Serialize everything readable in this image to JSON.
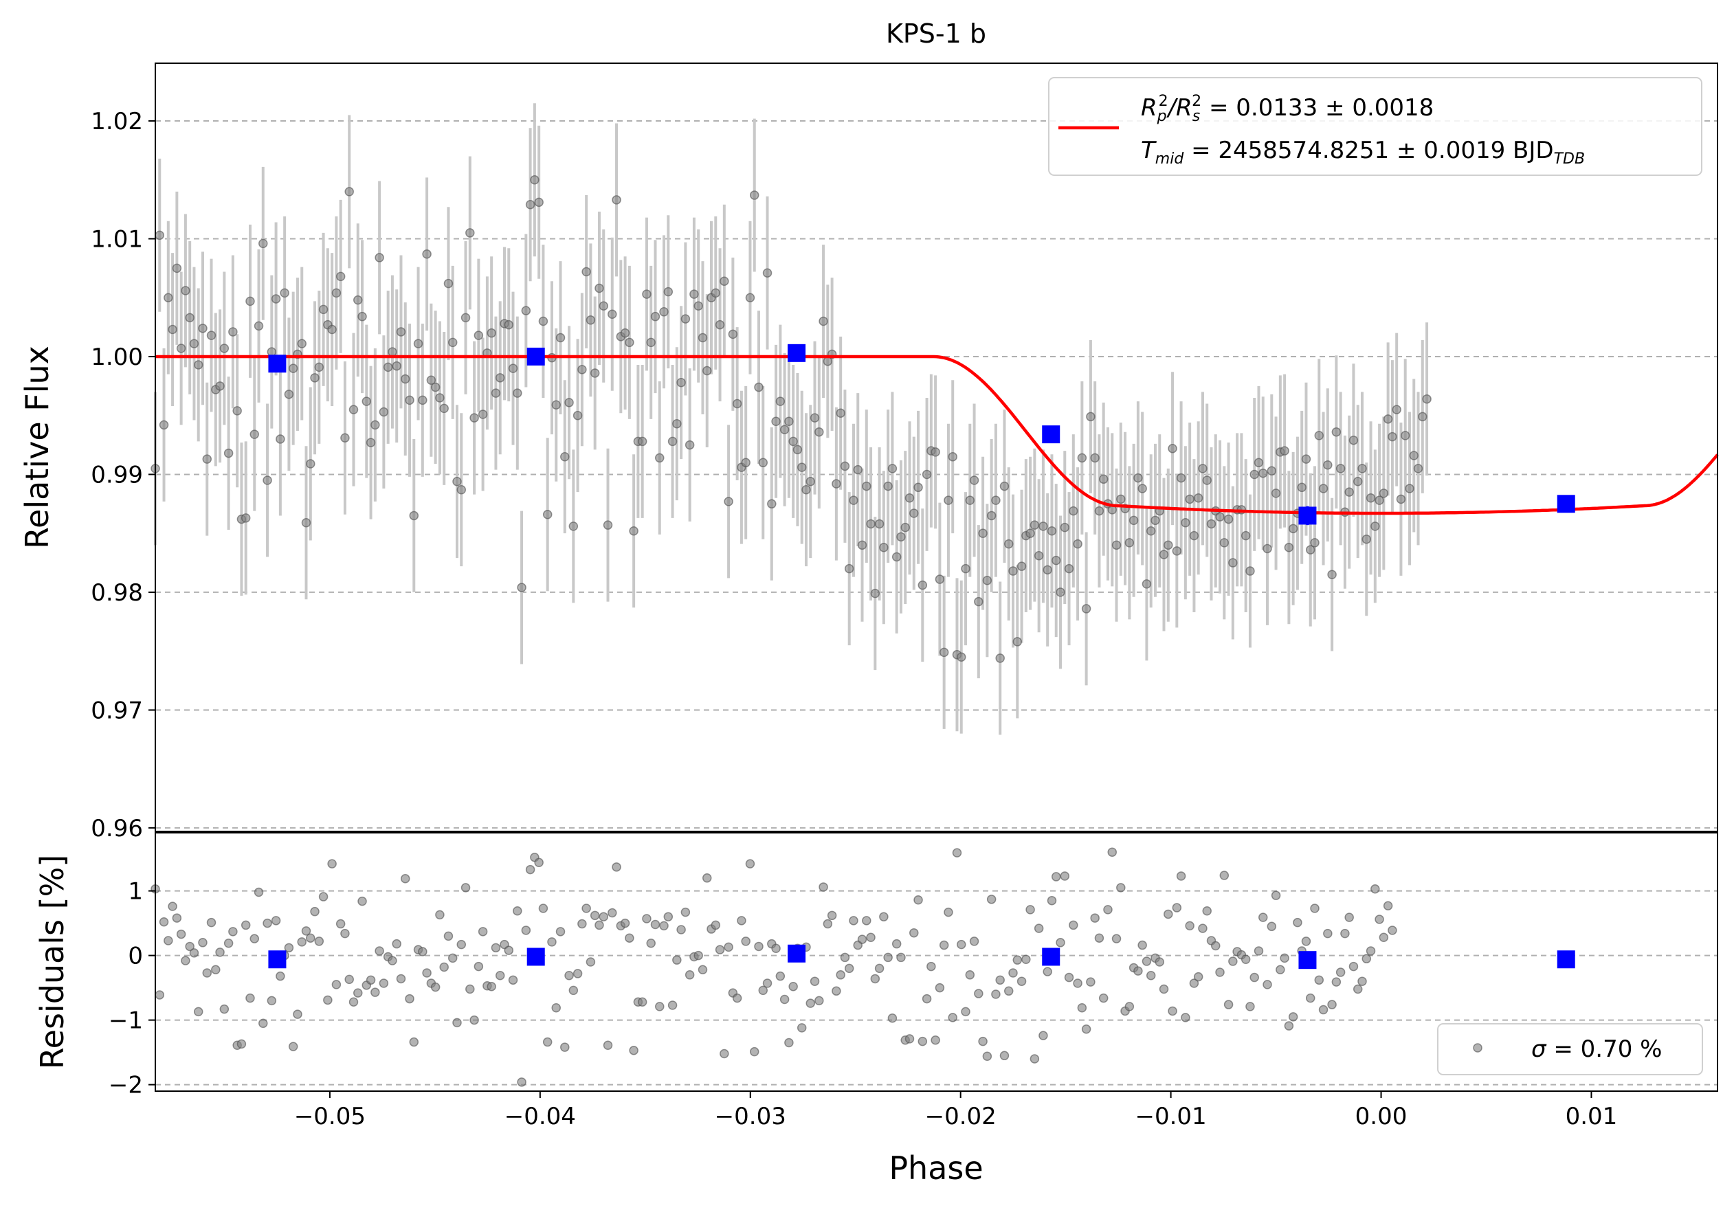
{
  "chart_data": [
    {
      "panel": "transit",
      "type": "scatter",
      "title": "KPS-1 b",
      "ylabel": "Relative Flux",
      "xlabel": "",
      "xlim": [
        -0.0583,
        0.016
      ],
      "ylim": [
        0.9597,
        1.0249
      ],
      "yticks": [
        0.96,
        0.97,
        0.98,
        0.99,
        1.0,
        1.01,
        1.02
      ],
      "ytick_labels": [
        "0.96",
        "0.97",
        "0.98",
        "0.99",
        "1.00",
        "1.01",
        "1.02"
      ],
      "grid": "y-dashed",
      "legend": {
        "position": "top-right",
        "entries": [
          {
            "line1_pre": "R",
            "line1_sub1": "p",
            "line1_sup1": "2",
            "line1_mid": "/R",
            "line1_sub2": "s",
            "line1_sup2": "2",
            "line1_post": " = 0.0133 ± 0.0018",
            "line2_pre": "T",
            "line2_sub": "mid",
            "line2_post": " = 2458574.8251 ± 0.0019 BJD",
            "line2_sub2": "TDB"
          }
        ]
      },
      "colors": {
        "data": "#808080",
        "errorbar": "#c8c8c8",
        "binned": "#0000ff",
        "model": "#ff0000",
        "grid": "#b0b0b0"
      },
      "model": {
        "name": "transit model",
        "baseline": 1.0,
        "depth": 0.0133,
        "t_center": 0.0,
        "t_ingress_start": -0.0213,
        "t_ingress_end": -0.0125,
        "t_egress_start": 0.0125,
        "t_egress_end": 0.0213
      },
      "binned": {
        "x": [
          -0.0525,
          -0.0402,
          -0.0278,
          -0.0157,
          -0.0035,
          0.0088
        ],
        "y": [
          0.9994,
          1.0,
          1.0003,
          0.9934,
          0.9865,
          0.9875
        ],
        "yerr": [
          0.0006,
          0.0006,
          0.0006,
          0.0006,
          0.0008,
          0.0006
        ]
      },
      "points": {
        "x_start": -0.0583,
        "x_step": 0.000205,
        "yerr": 0.0065,
        "y": [
          0.9905,
          1.0103,
          0.9942,
          1.005,
          1.0023,
          1.0075,
          1.0007,
          1.0056,
          1.0033,
          1.0011,
          0.9993,
          1.0024,
          0.9913,
          1.0018,
          0.9972,
          0.9975,
          1.0007,
          0.9918,
          1.0021,
          0.9954,
          0.9862,
          0.9863,
          1.0047,
          0.9934,
          1.0026,
          1.0096,
          0.9895,
          1.0004,
          1.0049,
          0.993,
          1.0054,
          0.9968,
          0.999,
          1.0002,
          1.0011,
          0.9859,
          0.9909,
          0.9982,
          0.9991,
          1.004,
          1.0027,
          1.0023,
          1.0054,
          1.0068,
          0.9931,
          1.014,
          0.9955,
          1.0048,
          1.0034,
          0.9962,
          0.9927,
          0.9942,
          1.0084,
          0.9953,
          0.9991,
          1.0004,
          0.9992,
          1.0021,
          0.9981,
          0.9963,
          0.9865,
          1.0011,
          0.9963,
          1.0087,
          0.998,
          0.9974,
          0.9965,
          0.9956,
          1.0062,
          1.0012,
          0.9894,
          0.9887,
          1.0033,
          1.0105,
          0.9948,
          1.0018,
          0.9951,
          1.0003,
          1.002,
          0.9969,
          0.9982,
          1.0028,
          1.0027,
          0.999,
          0.9969,
          0.9804,
          1.0039,
          1.0129,
          1.015,
          1.0131,
          1.003,
          0.9866,
          0.9999,
          0.9959,
          1.0016,
          0.9915,
          0.9961,
          0.9856,
          0.995,
          0.9989,
          1.0072,
          1.0031,
          0.9986,
          1.0058,
          1.0043,
          0.9857,
          1.0036,
          1.0133,
          1.0017,
          1.002,
          1.0012,
          0.9852,
          0.9928,
          0.9928,
          1.0053,
          1.0012,
          1.0034,
          0.9914,
          1.0038,
          1.0055,
          0.9928,
          0.9943,
          0.9978,
          1.0032,
          0.9925,
          1.0053,
          1.0043,
          1.0016,
          0.9988,
          1.005,
          1.0054,
          1.0027,
          1.0064,
          0.9877,
          1.0019,
          0.996,
          0.9906,
          0.991,
          1.005,
          1.0137,
          0.9974,
          0.991,
          1.0071,
          0.9875,
          0.9945,
          0.9962,
          0.9938,
          0.9945,
          0.9928,
          0.9921,
          0.9906,
          0.9887,
          0.9894,
          0.9948,
          0.9936,
          1.003,
          0.9996,
          1.0002,
          0.9892,
          0.9952,
          0.9907,
          0.982,
          0.9878,
          0.9904,
          0.984,
          0.989,
          0.9858,
          0.9799,
          0.9858,
          0.9838,
          0.989,
          0.9905,
          0.983,
          0.9847,
          0.9855,
          0.988,
          0.9867,
          0.9889,
          0.9806,
          0.99,
          0.992,
          0.9919,
          0.9811,
          0.9749,
          0.9878,
          0.9915,
          0.9747,
          0.9745,
          0.982,
          0.9878,
          0.9895,
          0.9792,
          0.985,
          0.981,
          0.9865,
          0.9878,
          0.9744,
          0.989,
          0.9841,
          0.9818,
          0.9758,
          0.9822,
          0.9848,
          0.985,
          0.9857,
          0.9831,
          0.9856,
          0.9819,
          0.9852,
          0.9827,
          0.98,
          0.9855,
          0.982,
          0.9869,
          0.9841,
          0.9914,
          0.9786,
          0.9949,
          0.9914,
          0.9869,
          0.9896,
          0.9875,
          0.987,
          0.984,
          0.9879,
          0.9871,
          0.9842,
          0.9861,
          0.9897,
          0.9888,
          0.9807,
          0.9852,
          0.9861,
          0.9869,
          0.9832,
          0.984,
          0.9922,
          0.9835,
          0.9897,
          0.9859,
          0.9879,
          0.9848,
          0.988,
          0.9905,
          0.9895,
          0.9858,
          0.9869,
          0.9864,
          0.9842,
          0.9862,
          0.9825,
          0.987,
          0.987,
          0.9848,
          0.9818,
          0.99,
          0.991,
          0.9901,
          0.9837,
          0.9903,
          0.9884,
          0.9919,
          0.992,
          0.9838,
          0.9854,
          0.9867,
          0.9889,
          0.9913,
          0.9836,
          0.9842,
          0.9933,
          0.9888,
          0.9908,
          0.9815,
          0.9936,
          0.9905,
          0.9868,
          0.9885,
          0.9929,
          0.9894,
          0.9905,
          0.9845,
          0.988,
          0.9856,
          0.9878,
          0.9884,
          0.9947,
          0.9932,
          0.9955,
          0.9879,
          0.9933,
          0.9888,
          0.9916,
          0.9905,
          0.9949,
          0.9964
        ]
      }
    },
    {
      "panel": "residuals",
      "type": "scatter",
      "title": "",
      "xlabel": "Phase",
      "ylabel": "Residuals [%]",
      "xlim": [
        -0.0583,
        0.016
      ],
      "ylim": [
        -2.1,
        1.9
      ],
      "yticks": [
        -2,
        -1,
        0,
        1
      ],
      "ytick_labels": [
        "−2",
        "−1",
        "0",
        "1"
      ],
      "xticks": [
        -0.05,
        -0.04,
        -0.03,
        -0.02,
        -0.01,
        0.0,
        0.01
      ],
      "xtick_labels": [
        "−0.05",
        "−0.04",
        "−0.03",
        "−0.02",
        "−0.01",
        "0.00",
        "0.01"
      ],
      "grid": "y-dashed",
      "legend": {
        "position": "bottom-right",
        "entries": [
          {
            "pre": "σ",
            "post": " = 0.70 %"
          }
        ]
      },
      "binned": {
        "x": [
          -0.0525,
          -0.0402,
          -0.0278,
          -0.0157,
          -0.0035,
          0.0088
        ],
        "y": [
          -0.06,
          -0.02,
          0.03,
          -0.02,
          -0.07,
          -0.06
        ]
      },
      "points": {
        "x_start": -0.0583,
        "x_step": 0.000205,
        "y": [
          1.03,
          -0.61,
          0.52,
          0.23,
          0.76,
          0.58,
          0.33,
          -0.08,
          0.14,
          0.04,
          -0.87,
          0.2,
          -0.27,
          0.51,
          -0.22,
          0.05,
          -0.83,
          0.19,
          0.37,
          -1.39,
          -1.37,
          0.47,
          -0.66,
          0.26,
          0.98,
          -1.05,
          0.5,
          -0.7,
          0.54,
          -0.32,
          0.0,
          0.12,
          -1.41,
          -0.91,
          0.21,
          0.38,
          0.27,
          0.68,
          0.22,
          0.91,
          -0.69,
          1.42,
          -0.45,
          0.49,
          0.34,
          -0.37,
          -0.72,
          -0.58,
          0.84,
          -0.46,
          -0.38,
          -0.57,
          0.07,
          -0.43,
          -0.02,
          -0.08,
          0.18,
          -0.36,
          1.19,
          -0.67,
          -1.34,
          0.09,
          0.06,
          -0.27,
          -0.43,
          -0.49,
          0.63,
          -0.18,
          0.3,
          -0.04,
          -1.04,
          0.17,
          1.05,
          -0.52,
          -1.0,
          -0.17,
          0.37,
          -0.47,
          -0.48,
          0.12,
          -0.31,
          0.17,
          0.08,
          -0.38,
          0.69,
          -1.96,
          0.39,
          1.33,
          1.52,
          1.44,
          0.73,
          -1.34,
          0.21,
          -0.81,
          0.37,
          -1.42,
          -0.31,
          -0.54,
          -0.28,
          0.49,
          0.73,
          -0.1,
          0.62,
          0.47,
          0.6,
          -1.39,
          0.66,
          1.37,
          0.46,
          0.5,
          0.27,
          -1.47,
          -0.72,
          -0.72,
          0.57,
          0.19,
          0.48,
          -0.79,
          0.46,
          0.6,
          -0.77,
          -0.07,
          0.4,
          0.67,
          -0.3,
          -0.02,
          0.0,
          -0.22,
          1.2,
          0.41,
          0.47,
          0.09,
          -1.52,
          0.13,
          -0.58,
          -0.66,
          0.54,
          0.22,
          1.42,
          -1.49,
          0.14,
          -0.54,
          -0.43,
          0.18,
          0.11,
          -0.32,
          -0.68,
          -1.35,
          -0.48,
          0.11,
          -1.12,
          0.13,
          -0.74,
          -0.4,
          -0.7,
          1.06,
          0.49,
          0.62,
          -0.55,
          -0.3,
          -0.03,
          -0.2,
          0.54,
          0.16,
          0.25,
          0.54,
          0.28,
          -0.36,
          -0.2,
          0.6,
          -0.03,
          -0.97,
          0.18,
          -0.03,
          -1.31,
          -1.29,
          0.35,
          0.86,
          -1.33,
          -0.67,
          -0.17,
          -1.31,
          -0.5,
          0.16,
          0.67,
          -0.96,
          1.59,
          0.17,
          -0.87,
          -0.3,
          0.22,
          -0.59,
          -1.33,
          -1.56,
          0.87,
          -0.6,
          -0.38,
          -1.55,
          -0.55,
          -0.27,
          -0.07,
          -0.4,
          -0.06,
          0.71,
          -1.6,
          0.42,
          -1.24,
          -0.25,
          0.85,
          1.22,
          0.2,
          1.23,
          -0.34,
          0.47,
          -0.43,
          -0.81,
          -1.14,
          -0.41,
          0.58,
          0.27,
          -0.66,
          0.71,
          1.6,
          0.26,
          1.05,
          -0.86,
          -0.79,
          -0.19,
          -0.24,
          0.16,
          -0.09,
          -0.31,
          -0.04,
          -0.1,
          -0.52,
          0.64,
          -0.86,
          0.74,
          1.23,
          -0.96,
          0.46,
          -0.43,
          -0.33,
          0.42,
          0.69,
          0.23,
          0.15,
          -0.26,
          1.24,
          -0.76,
          -0.09,
          0.06,
          0.01,
          -0.06,
          -0.79,
          -0.34,
          0.07,
          0.59,
          -0.45,
          0.45,
          0.93,
          -0.22,
          -0.04,
          -1.09,
          -0.95,
          0.51,
          0.07,
          0.22,
          -0.66,
          0.73,
          -0.38,
          -0.84,
          0.34,
          -0.76,
          -0.41,
          -0.26,
          0.34,
          0.59,
          -0.17,
          -0.52,
          -0.4,
          -0.05,
          0.07,
          1.03,
          0.56,
          0.28,
          0.77,
          0.39
        ]
      }
    }
  ]
}
